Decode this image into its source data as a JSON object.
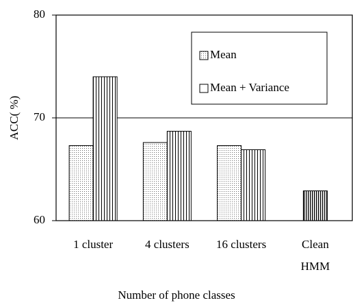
{
  "chart_data": {
    "type": "bar",
    "xlabel": "Number of phone classes",
    "ylabel": "ACC( %)",
    "categories": [
      "1 cluster",
      "4 clusters",
      "16 clusters",
      "Clean\nHMM"
    ],
    "series": [
      {
        "name": "Mean",
        "pattern": "dots",
        "color": "#000000",
        "values": [
          67.3,
          67.6,
          67.3,
          null
        ]
      },
      {
        "name": "Mean + Variance",
        "pattern": "stripes",
        "color": "#000000",
        "values": [
          74.0,
          68.7,
          66.9,
          null
        ]
      },
      {
        "pattern": "dense-stripes",
        "color": "#000000",
        "values": [
          null,
          null,
          null,
          62.9
        ]
      }
    ],
    "ylim": [
      60,
      80
    ],
    "yticks": [
      60,
      70,
      80
    ],
    "grid": true
  }
}
